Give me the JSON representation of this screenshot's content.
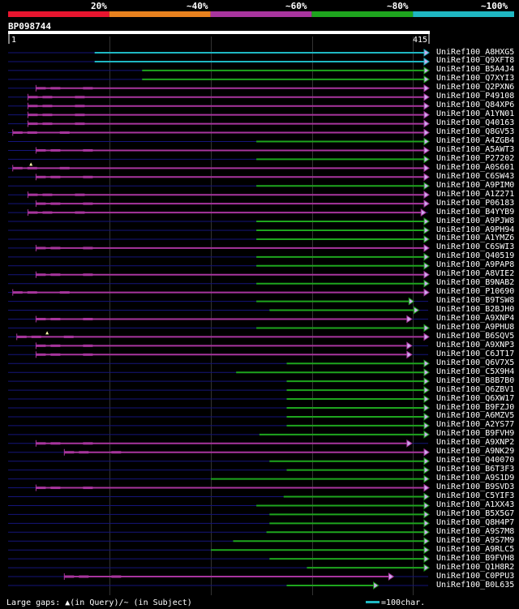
{
  "legend": {
    "labels": [
      "20%",
      "~40%",
      "~60%",
      "~80%",
      "~100%"
    ],
    "colors": [
      "#e8152f",
      "#e8811e",
      "#a8359e",
      "#1ea51e",
      "#1fb7c2"
    ]
  },
  "query": {
    "id": "BP098744",
    "start": "1",
    "end": "415"
  },
  "footer": {
    "gaps_text": "Large gaps: ▲(in Query)/~ (in Subject)",
    "scale_text": "=100char.",
    "scale_color": "#1fb7c2"
  },
  "chart_data": {
    "type": "alignment",
    "query_length": 415,
    "colors": {
      "cyan": "#1fb7c2",
      "green": "#1ea51e",
      "magenta": "#a8359e",
      "line": "#15157a",
      "grid": "#333333",
      "tri_fill": "#ccaaee",
      "marker": "#ffffaa"
    },
    "hits": [
      {
        "name": "UniRef100_A8HXG5",
        "start": 85,
        "end": 415,
        "color": "cyan",
        "mid": false,
        "mark": null
      },
      {
        "name": "UniRef100_Q9XFT8",
        "start": 85,
        "end": 415,
        "color": "cyan",
        "mid": false,
        "mark": null
      },
      {
        "name": "UniRef100_B5A4J4",
        "start": 132,
        "end": 415,
        "color": "green",
        "mid": false,
        "mark": null
      },
      {
        "name": "UniRef100_Q7XYI3",
        "start": 132,
        "end": 415,
        "color": "green",
        "mid": false,
        "mark": null
      },
      {
        "name": "UniRef100_Q2PXN6",
        "start": 27,
        "end": 415,
        "color": "magenta",
        "mid": true,
        "mark": null
      },
      {
        "name": "UniRef100_P49108",
        "start": 19,
        "end": 415,
        "color": "magenta",
        "mid": true,
        "mark": null
      },
      {
        "name": "UniRef100_Q84XP6",
        "start": 19,
        "end": 415,
        "color": "magenta",
        "mid": true,
        "mark": null
      },
      {
        "name": "UniRef100_A1YN01",
        "start": 19,
        "end": 415,
        "color": "magenta",
        "mid": true,
        "mark": null
      },
      {
        "name": "UniRef100_Q40163",
        "start": 19,
        "end": 415,
        "color": "magenta",
        "mid": true,
        "mark": null
      },
      {
        "name": "UniRef100_Q8GV53",
        "start": 4,
        "end": 415,
        "color": "magenta",
        "mid": true,
        "mark": null
      },
      {
        "name": "UniRef100_A4ZGB4",
        "start": 245,
        "end": 415,
        "color": "green",
        "mid": false,
        "mark": null
      },
      {
        "name": "UniRef100_A5AWT3",
        "start": 27,
        "end": 415,
        "color": "magenta",
        "mid": true,
        "mark": null
      },
      {
        "name": "UniRef100_P27202",
        "start": 245,
        "end": 415,
        "color": "green",
        "mid": false,
        "mark": null
      },
      {
        "name": "UniRef100_A0S601",
        "start": 4,
        "end": 415,
        "color": "magenta",
        "mid": true,
        "mark": 22
      },
      {
        "name": "UniRef100_C6SW43",
        "start": 27,
        "end": 415,
        "color": "magenta",
        "mid": true,
        "mark": null
      },
      {
        "name": "UniRef100_A9PIM0",
        "start": 245,
        "end": 415,
        "color": "green",
        "mid": false,
        "mark": null
      },
      {
        "name": "UniRef100_A1Z271",
        "start": 19,
        "end": 415,
        "color": "magenta",
        "mid": true,
        "mark": null
      },
      {
        "name": "UniRef100_P06183",
        "start": 27,
        "end": 415,
        "color": "magenta",
        "mid": true,
        "mark": null
      },
      {
        "name": "UniRef100_B4YYB9",
        "start": 19,
        "end": 412,
        "color": "magenta",
        "mid": true,
        "mark": null
      },
      {
        "name": "UniRef100_A9PJW8",
        "start": 245,
        "end": 415,
        "color": "green",
        "mid": false,
        "mark": null
      },
      {
        "name": "UniRef100_A9PH94",
        "start": 245,
        "end": 415,
        "color": "green",
        "mid": false,
        "mark": null
      },
      {
        "name": "UniRef100_A1YMZ6",
        "start": 245,
        "end": 415,
        "color": "green",
        "mid": false,
        "mark": null
      },
      {
        "name": "UniRef100_C6SWI3",
        "start": 27,
        "end": 415,
        "color": "magenta",
        "mid": true,
        "mark": null
      },
      {
        "name": "UniRef100_Q40519",
        "start": 245,
        "end": 415,
        "color": "green",
        "mid": false,
        "mark": null
      },
      {
        "name": "UniRef100_A9PAP8",
        "start": 245,
        "end": 415,
        "color": "green",
        "mid": false,
        "mark": null
      },
      {
        "name": "UniRef100_A8VIE2",
        "start": 27,
        "end": 415,
        "color": "magenta",
        "mid": true,
        "mark": null
      },
      {
        "name": "UniRef100_B9NAB2",
        "start": 245,
        "end": 415,
        "color": "green",
        "mid": false,
        "mark": null
      },
      {
        "name": "UniRef100_P10690",
        "start": 4,
        "end": 415,
        "color": "magenta",
        "mid": true,
        "mark": null
      },
      {
        "name": "UniRef100_B9TSW8",
        "start": 245,
        "end": 400,
        "color": "green",
        "mid": false,
        "mark": null
      },
      {
        "name": "UniRef100_B2BJH0",
        "start": 258,
        "end": 405,
        "color": "green",
        "mid": false,
        "mark": null
      },
      {
        "name": "UniRef100_A9XNP4",
        "start": 27,
        "end": 398,
        "color": "magenta",
        "mid": true,
        "mark": null
      },
      {
        "name": "UniRef100_A9PHU8",
        "start": 245,
        "end": 415,
        "color": "green",
        "mid": false,
        "mark": null
      },
      {
        "name": "UniRef100_B6SQV5",
        "start": 8,
        "end": 415,
        "color": "magenta",
        "mid": true,
        "mark": 38
      },
      {
        "name": "UniRef100_A9XNP3",
        "start": 27,
        "end": 398,
        "color": "magenta",
        "mid": true,
        "mark": null
      },
      {
        "name": "UniRef100_C6JT17",
        "start": 27,
        "end": 398,
        "color": "magenta",
        "mid": true,
        "mark": null
      },
      {
        "name": "UniRef100_Q6V7X5",
        "start": 275,
        "end": 415,
        "color": "green",
        "mid": false,
        "mark": null
      },
      {
        "name": "UniRef100_C5X9H4",
        "start": 225,
        "end": 415,
        "color": "green",
        "mid": false,
        "mark": null
      },
      {
        "name": "UniRef100_B8B7B0",
        "start": 275,
        "end": 415,
        "color": "green",
        "mid": false,
        "mark": null
      },
      {
        "name": "UniRef100_Q6ZBV1",
        "start": 275,
        "end": 415,
        "color": "green",
        "mid": false,
        "mark": null
      },
      {
        "name": "UniRef100_Q6XW17",
        "start": 275,
        "end": 415,
        "color": "green",
        "mid": false,
        "mark": null
      },
      {
        "name": "UniRef100_B9FZJ0",
        "start": 275,
        "end": 415,
        "color": "green",
        "mid": false,
        "mark": null
      },
      {
        "name": "UniRef100_A6MZV5",
        "start": 275,
        "end": 415,
        "color": "green",
        "mid": false,
        "mark": null
      },
      {
        "name": "UniRef100_A2YS77",
        "start": 275,
        "end": 415,
        "color": "green",
        "mid": false,
        "mark": null
      },
      {
        "name": "UniRef100_B9FVH9",
        "start": 248,
        "end": 415,
        "color": "green",
        "mid": false,
        "mark": null
      },
      {
        "name": "UniRef100_A9XNP2",
        "start": 27,
        "end": 398,
        "color": "magenta",
        "mid": true,
        "mark": null
      },
      {
        "name": "UniRef100_A9NK29",
        "start": 55,
        "end": 415,
        "color": "magenta",
        "mid": true,
        "mark": null
      },
      {
        "name": "UniRef100_Q40070",
        "start": 258,
        "end": 415,
        "color": "green",
        "mid": false,
        "mark": null
      },
      {
        "name": "UniRef100_B6T3F3",
        "start": 275,
        "end": 415,
        "color": "green",
        "mid": false,
        "mark": null
      },
      {
        "name": "UniRef100_A9S1D9",
        "start": 200,
        "end": 415,
        "color": "green",
        "mid": false,
        "mark": null
      },
      {
        "name": "UniRef100_B9SVD3",
        "start": 27,
        "end": 415,
        "color": "magenta",
        "mid": true,
        "mark": null
      },
      {
        "name": "UniRef100_C5YIF3",
        "start": 272,
        "end": 415,
        "color": "green",
        "mid": false,
        "mark": null
      },
      {
        "name": "UniRef100_A1XX43",
        "start": 245,
        "end": 415,
        "color": "green",
        "mid": false,
        "mark": null
      },
      {
        "name": "UniRef100_B5X5G7",
        "start": 258,
        "end": 415,
        "color": "green",
        "mid": false,
        "mark": null
      },
      {
        "name": "UniRef100_Q8H4P7",
        "start": 258,
        "end": 415,
        "color": "green",
        "mid": false,
        "mark": null
      },
      {
        "name": "UniRef100_A9S7M8",
        "start": 255,
        "end": 415,
        "color": "green",
        "mid": false,
        "mark": null
      },
      {
        "name": "UniRef100_A9S7M9",
        "start": 222,
        "end": 415,
        "color": "green",
        "mid": false,
        "mark": null
      },
      {
        "name": "UniRef100_A9RLC5",
        "start": 200,
        "end": 415,
        "color": "green",
        "mid": false,
        "mark": null
      },
      {
        "name": "UniRef100_B9FVH8",
        "start": 258,
        "end": 415,
        "color": "green",
        "mid": false,
        "mark": null
      },
      {
        "name": "UniRef100_Q1H8R2",
        "start": 295,
        "end": 415,
        "color": "green",
        "mid": false,
        "mark": null
      },
      {
        "name": "UniRef100_C0PPU3",
        "start": 55,
        "end": 380,
        "color": "magenta",
        "mid": true,
        "mark": null
      },
      {
        "name": "UniRef100_B0L635",
        "start": 275,
        "end": 365,
        "color": "green",
        "mid": false,
        "mark": null
      }
    ]
  }
}
